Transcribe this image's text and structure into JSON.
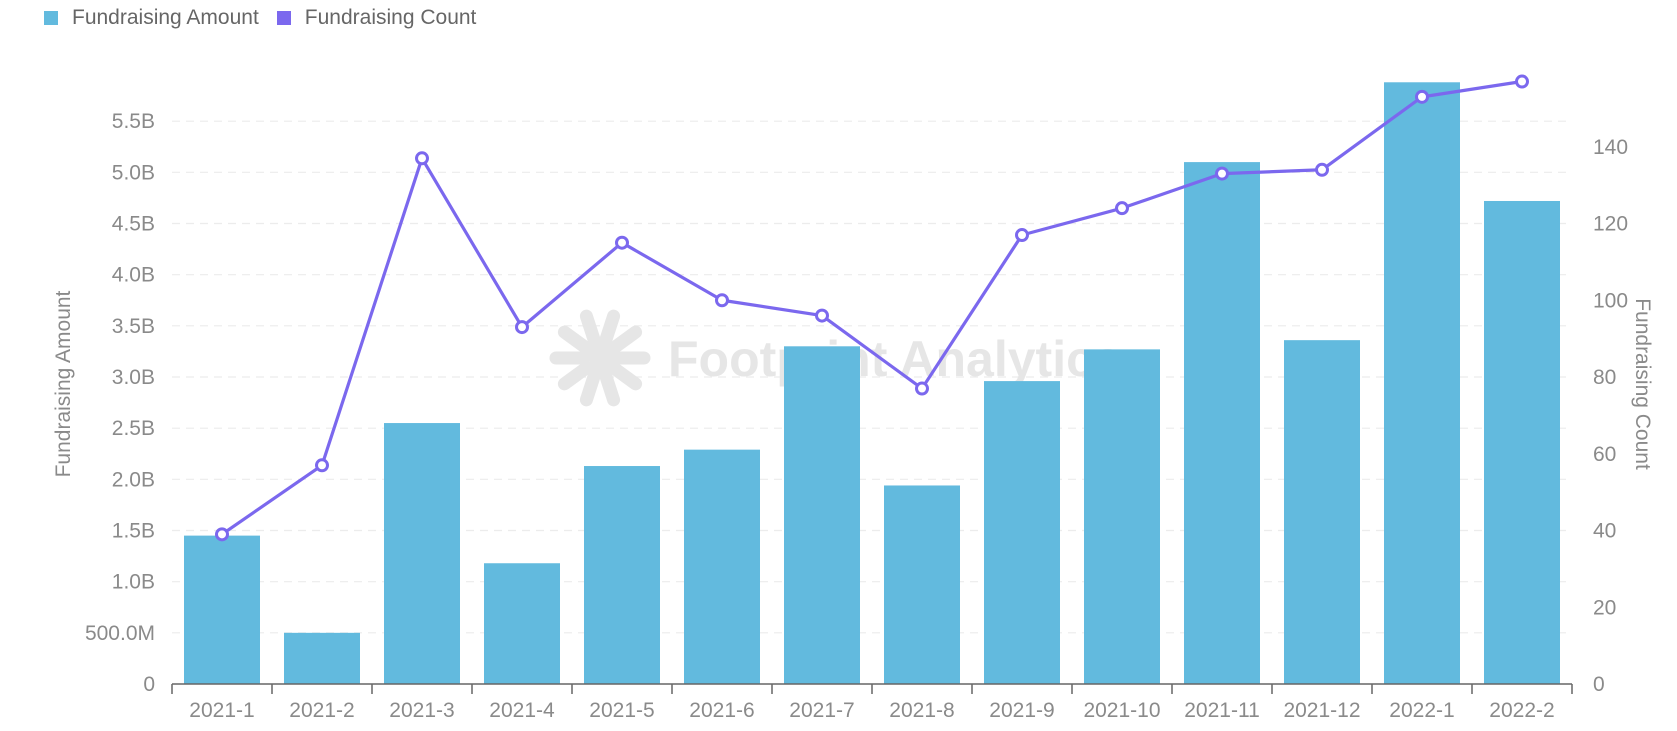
{
  "colors": {
    "bar": "#62bade",
    "line": "#7b68ee",
    "axis_text": "#8a8a8a",
    "grid": "#ececec",
    "axis_line": "#666666",
    "watermark": "#e6e6e6"
  },
  "legend": {
    "items": [
      {
        "label": "Fundraising Amount",
        "color": "#62bade"
      },
      {
        "label": "Fundraising Count",
        "color": "#7b68ee"
      }
    ]
  },
  "watermark": {
    "text": "Footprint Analytics",
    "icon": "footprint-logo-icon"
  },
  "chart_data": {
    "type": "bar",
    "categories": [
      "2021-1",
      "2021-2",
      "2021-3",
      "2021-4",
      "2021-5",
      "2021-6",
      "2021-7",
      "2021-8",
      "2021-9",
      "2021-10",
      "2021-11",
      "2021-12",
      "2022-1",
      "2022-2"
    ],
    "series": [
      {
        "name": "Fundraising Amount",
        "type": "bar",
        "axis": "left",
        "values": [
          1450000000,
          500000000,
          2550000000,
          1180000000,
          2130000000,
          2290000000,
          3300000000,
          1940000000,
          2960000000,
          3270000000,
          5100000000,
          3360000000,
          5880000000,
          4720000000
        ]
      },
      {
        "name": "Fundraising Count",
        "type": "line",
        "axis": "right",
        "values": [
          39,
          57,
          137,
          93,
          115,
          100,
          96,
          77,
          117,
          124,
          133,
          134,
          153,
          157
        ]
      }
    ],
    "ylabel": "Fundraising Amount",
    "y2label": "Fundraising Count",
    "ylim": [
      0,
      6000000000
    ],
    "y2lim": [
      0,
      160
    ],
    "yticks": [
      {
        "value": 0,
        "label": "0"
      },
      {
        "value": 500000000,
        "label": "500.0M"
      },
      {
        "value": 1000000000,
        "label": "1.0B"
      },
      {
        "value": 1500000000,
        "label": "1.5B"
      },
      {
        "value": 2000000000,
        "label": "2.0B"
      },
      {
        "value": 2500000000,
        "label": "2.5B"
      },
      {
        "value": 3000000000,
        "label": "3.0B"
      },
      {
        "value": 3500000000,
        "label": "3.5B"
      },
      {
        "value": 4000000000,
        "label": "4.0B"
      },
      {
        "value": 4500000000,
        "label": "4.5B"
      },
      {
        "value": 5000000000,
        "label": "5.0B"
      },
      {
        "value": 5500000000,
        "label": "5.5B"
      }
    ],
    "y2ticks": [
      {
        "value": 0,
        "label": "0"
      },
      {
        "value": 20,
        "label": "20"
      },
      {
        "value": 40,
        "label": "40"
      },
      {
        "value": 60,
        "label": "60"
      },
      {
        "value": 80,
        "label": "80"
      },
      {
        "value": 100,
        "label": "100"
      },
      {
        "value": 120,
        "label": "120"
      },
      {
        "value": 140,
        "label": "140"
      }
    ],
    "grid": true,
    "legend_position": "top-left"
  }
}
